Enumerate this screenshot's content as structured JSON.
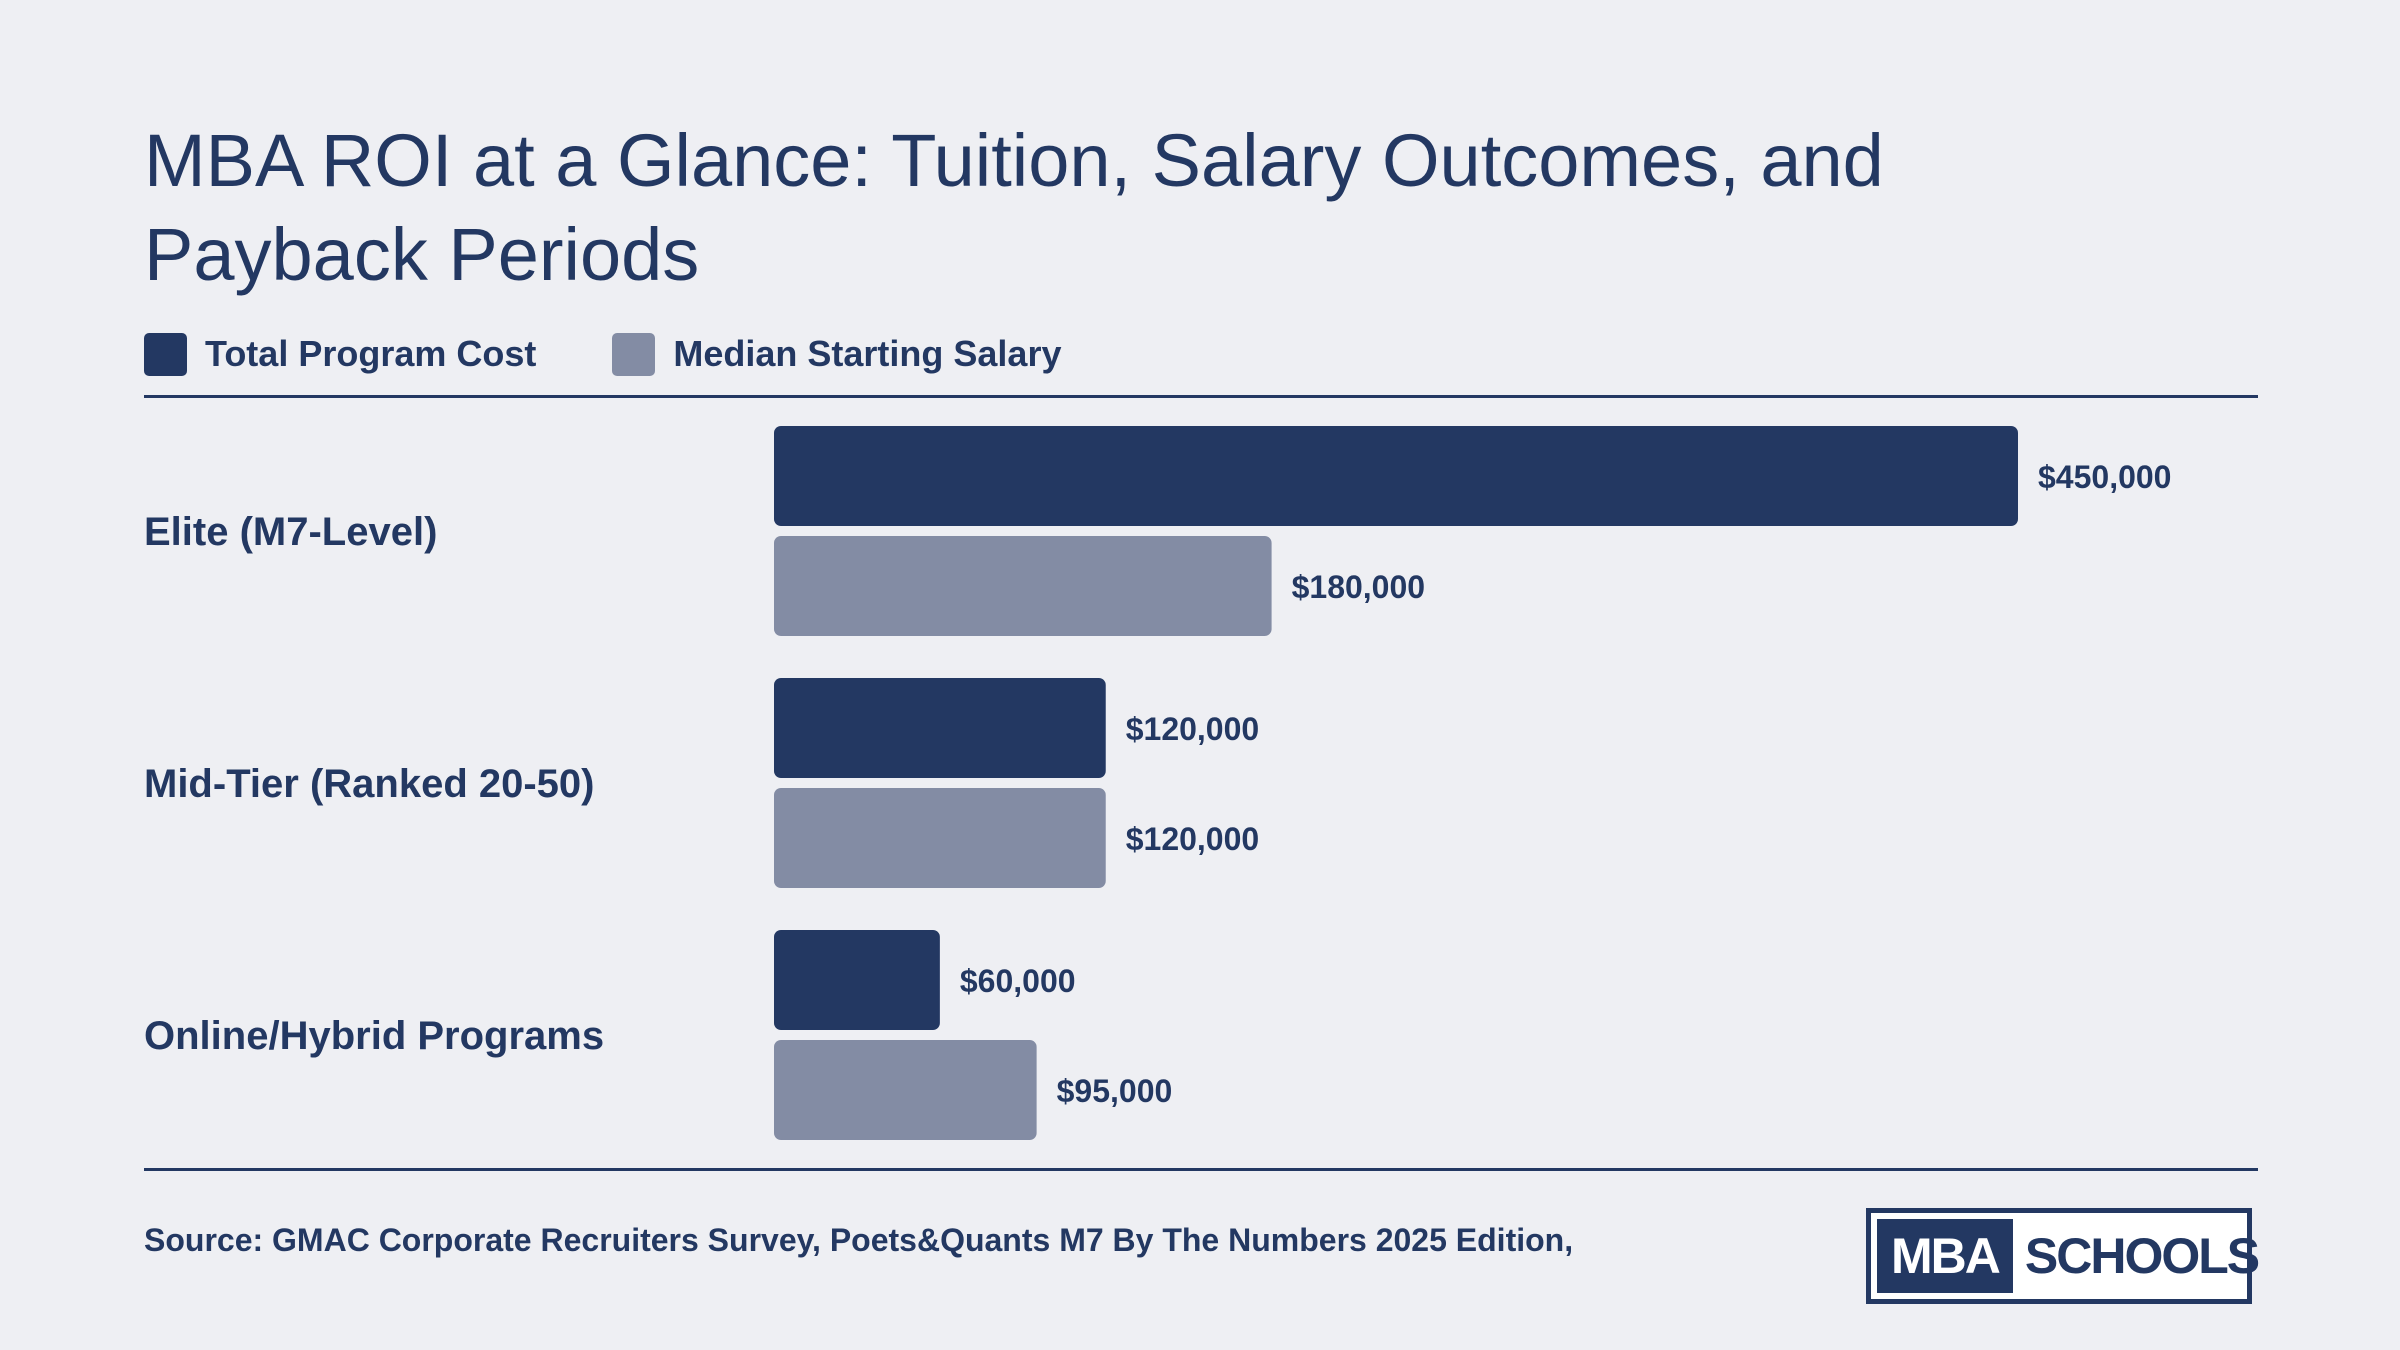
{
  "title": "MBA ROI at a Glance: Tuition, Salary Outcomes, and Payback Periods",
  "legend": [
    {
      "label": "Total Program Cost",
      "color": "#233862"
    },
    {
      "label": "Median Starting Salary",
      "color": "#838ca4"
    }
  ],
  "source": "Source: GMAC Corporate Recruiters Survey, Poets&Quants M7 By The Numbers 2025 Edition,",
  "logo": {
    "left_text": "MBA",
    "right_text": "SCHOOLS"
  },
  "colors": {
    "background": "#eeeff3",
    "text": "#233862",
    "cost": "#233862",
    "salary": "#838ca4"
  },
  "chart_data": {
    "type": "bar",
    "orientation": "horizontal",
    "categories": [
      "Elite (M7-Level)",
      "Mid-Tier (Ranked 20-50)",
      "Online/Hybrid Programs"
    ],
    "series": [
      {
        "name": "Total Program Cost",
        "values": [
          450000,
          120000,
          60000
        ],
        "labels": [
          "$450,000",
          "$120,000",
          "$60,000"
        ]
      },
      {
        "name": "Median Starting Salary",
        "values": [
          180000,
          120000,
          95000
        ],
        "labels": [
          "$180,000",
          "$120,000",
          "$95,000"
        ]
      }
    ],
    "xlim": [
      0,
      450000
    ],
    "grid": false,
    "legend_position": "top-left"
  }
}
